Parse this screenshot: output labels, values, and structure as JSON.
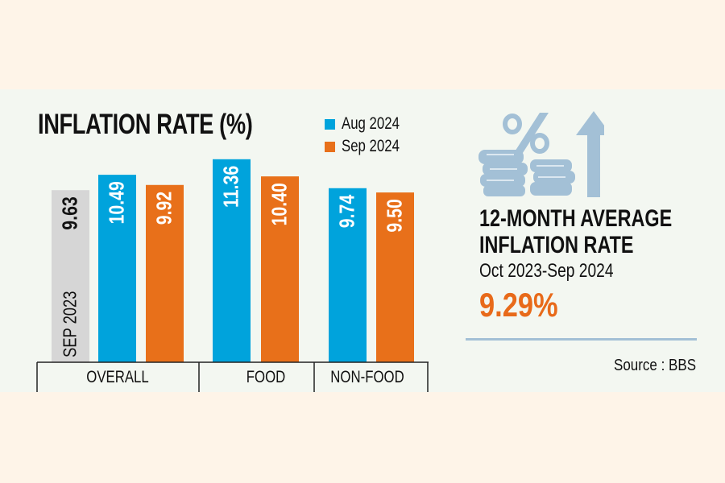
{
  "chart_data": {
    "type": "bar",
    "title": "INFLATION RATE (%)",
    "categories": [
      "OVERALL",
      "FOOD",
      "NON-FOOD"
    ],
    "series": [
      {
        "name": "Aug 2024",
        "color": "#00a3dc",
        "values": [
          10.49,
          11.36,
          9.74
        ]
      },
      {
        "name": "Sep 2024",
        "color": "#e8701a",
        "values": [
          9.92,
          10.4,
          9.5
        ]
      }
    ],
    "reference": {
      "name": "SEP 2023",
      "category": "OVERALL",
      "value": 9.63,
      "color": "#d6d6d6"
    },
    "value_labels": {
      "reference": "9.63",
      "aug": [
        "10.49",
        "11.36",
        "9.74"
      ],
      "sep": [
        "9.92",
        "10.40",
        "9.50"
      ]
    },
    "xlabel": "",
    "ylabel": "",
    "ylim": [
      0,
      11.36
    ],
    "grid": false,
    "legend_position": "top-right"
  },
  "legend": {
    "items": [
      {
        "label": "Aug 2024",
        "color": "#00a3dc"
      },
      {
        "label": "Sep 2024",
        "color": "#e8701a"
      }
    ]
  },
  "summary": {
    "icon": "coins-percent-up-arrow-icon",
    "title_line1": "12-MONTH AVERAGE",
    "title_line2": "INFLATION RATE",
    "period": "Oct 2023-Sep 2024",
    "value": "9.29%",
    "accent_color": "#e86a1a"
  },
  "source": "Source : BBS"
}
